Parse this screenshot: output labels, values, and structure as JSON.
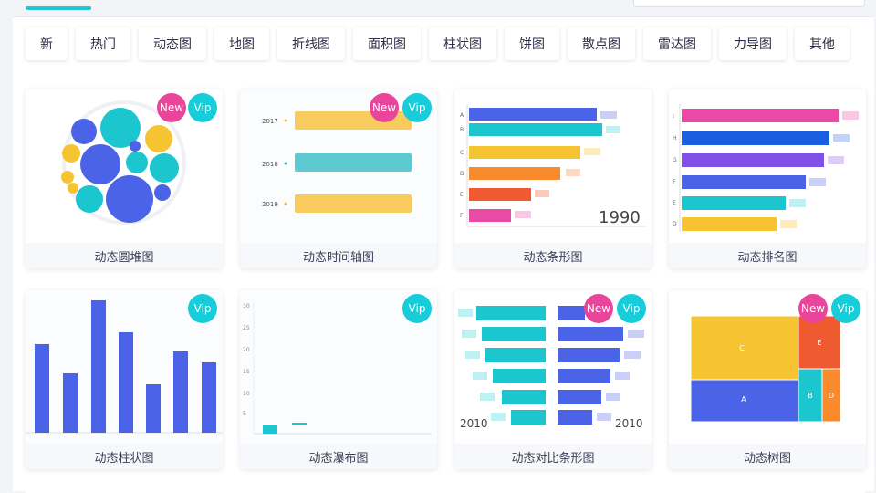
{
  "tabs": [
    {
      "label": "新"
    },
    {
      "label": "热门"
    },
    {
      "label": "动态图"
    },
    {
      "label": "地图"
    },
    {
      "label": "折线图"
    },
    {
      "label": "面积图"
    },
    {
      "label": "柱状图"
    },
    {
      "label": "饼图"
    },
    {
      "label": "散点图"
    },
    {
      "label": "雷达图"
    },
    {
      "label": "力导图"
    },
    {
      "label": "其他"
    }
  ],
  "badges": {
    "new": "New",
    "vip": "Vip"
  },
  "cards": [
    {
      "title": "动态圆堆图",
      "new": true,
      "vip": true
    },
    {
      "title": "动态时间轴图",
      "new": true,
      "vip": true,
      "years": [
        "2017",
        "2018",
        "2019"
      ]
    },
    {
      "title": "动态条形图",
      "new": false,
      "vip": false,
      "cats": [
        "A",
        "B",
        "C",
        "D",
        "E",
        "F"
      ],
      "year": "1990"
    },
    {
      "title": "动态排名图",
      "new": false,
      "vip": false,
      "cats": [
        "I",
        "H",
        "G",
        "F",
        "E",
        "D"
      ]
    },
    {
      "title": "动态柱状图",
      "new": false,
      "vip": true
    },
    {
      "title": "动态瀑布图",
      "new": false,
      "vip": true,
      "ticks": [
        "30",
        "25",
        "20",
        "15",
        "10",
        "5"
      ]
    },
    {
      "title": "动态对比条形图",
      "new": true,
      "vip": true,
      "year_left": "2010",
      "year_right": "2010"
    },
    {
      "title": "动态树图",
      "new": true,
      "vip": true,
      "cells": [
        "C",
        "E",
        "A",
        "B",
        "D"
      ]
    }
  ],
  "colors": {
    "accent": "#21c7d4",
    "new_badge": "#e9459a",
    "vip_badge": "#17cdd9",
    "bar_blue": "#4b63e6"
  }
}
